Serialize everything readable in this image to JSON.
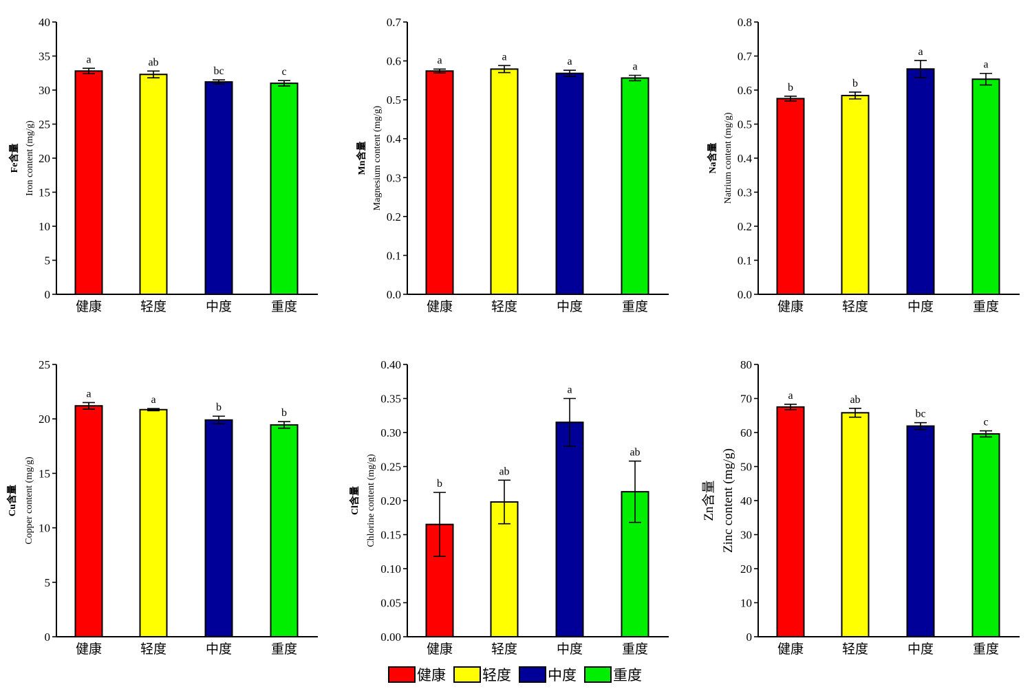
{
  "legend": {
    "items": [
      {
        "label": "健康",
        "color": "#ff0000"
      },
      {
        "label": "轻度",
        "color": "#ffff00"
      },
      {
        "label": "中度",
        "color": "#000099"
      },
      {
        "label": "重度",
        "color": "#00ee00"
      }
    ]
  },
  "chart_data": [
    {
      "type": "bar",
      "ylabel_line1": "Fe含量",
      "ylabel_line2": "Iron content (mg/g)",
      "categories": [
        "健康",
        "轻度",
        "中度",
        "重度"
      ],
      "values": [
        32.8,
        32.3,
        31.2,
        31.0
      ],
      "errors": [
        0.4,
        0.5,
        0.3,
        0.4
      ],
      "significance": [
        "a",
        "ab",
        "bc",
        "c"
      ],
      "ylim": [
        0,
        40
      ],
      "yticks": [
        "0",
        "5",
        "10",
        "15",
        "20",
        "25",
        "30",
        "35",
        "40"
      ]
    },
    {
      "type": "bar",
      "ylabel_line1": "Mn含量",
      "ylabel_line2": "Magnesium content (mg/g)",
      "categories": [
        "健康",
        "轻度",
        "中度",
        "重度"
      ],
      "values": [
        0.574,
        0.579,
        0.568,
        0.556
      ],
      "errors": [
        0.005,
        0.009,
        0.008,
        0.007
      ],
      "significance": [
        "a",
        "a",
        "a",
        "a"
      ],
      "ylim": [
        0,
        0.7
      ],
      "yticks": [
        "0.0",
        "0.1",
        "0.2",
        "0.3",
        "0.4",
        "0.5",
        "0.6",
        "0.7"
      ]
    },
    {
      "type": "bar",
      "ylabel_line1": "Na含量",
      "ylabel_line2": "Natrium content (mg/g)",
      "categories": [
        "健康",
        "轻度",
        "中度",
        "重度"
      ],
      "values": [
        0.575,
        0.584,
        0.662,
        0.632
      ],
      "errors": [
        0.007,
        0.01,
        0.025,
        0.017
      ],
      "significance": [
        "b",
        "b",
        "a",
        "a"
      ],
      "ylim": [
        0,
        0.8
      ],
      "yticks": [
        "0.0",
        "0.1",
        "0.2",
        "0.3",
        "0.4",
        "0.5",
        "0.6",
        "0.7",
        "0.8"
      ]
    },
    {
      "type": "bar",
      "ylabel_line1": "Cu含量",
      "ylabel_line2": "Copper content (mg/g)",
      "categories": [
        "健康",
        "轻度",
        "中度",
        "重度"
      ],
      "values": [
        21.2,
        20.85,
        19.9,
        19.45
      ],
      "errors": [
        0.3,
        0.1,
        0.35,
        0.3
      ],
      "significance": [
        "a",
        "a",
        "b",
        "b"
      ],
      "ylim": [
        0,
        25
      ],
      "yticks": [
        "0",
        "5",
        "10",
        "15",
        "20",
        "25"
      ]
    },
    {
      "type": "bar",
      "ylabel_line1": "Cl含量",
      "ylabel_line2": "Chlorine content (mg/g)",
      "categories": [
        "健康",
        "轻度",
        "中度",
        "重度"
      ],
      "values": [
        0.165,
        0.198,
        0.315,
        0.213
      ],
      "errors": [
        0.047,
        0.032,
        0.035,
        0.045
      ],
      "significance": [
        "b",
        "ab",
        "a",
        "ab"
      ],
      "ylim": [
        0,
        0.4
      ],
      "yticks": [
        "0.00",
        "0.05",
        "0.10",
        "0.15",
        "0.20",
        "0.25",
        "0.30",
        "0.35",
        "0.40"
      ]
    },
    {
      "type": "bar",
      "ylabel_line1": "Zn含量",
      "ylabel_line2": "Zinc content (mg/g)",
      "categories": [
        "健康",
        "轻度",
        "中度",
        "重度"
      ],
      "values": [
        67.5,
        65.8,
        61.9,
        59.6
      ],
      "errors": [
        0.8,
        1.3,
        1.0,
        0.9
      ],
      "significance": [
        "a",
        "ab",
        "bc",
        "c"
      ],
      "ylim": [
        0,
        80
      ],
      "yticks": [
        "0",
        "10",
        "20",
        "30",
        "40",
        "50",
        "60",
        "70",
        "80"
      ]
    }
  ]
}
